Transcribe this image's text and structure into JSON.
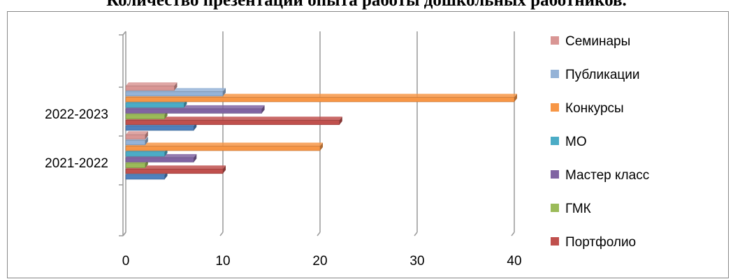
{
  "chart_data": {
    "type": "bar",
    "orientation": "horizontal",
    "title": "Количество презентаций опыта работы дошкольных работников.",
    "categories": [
      "2021-2022",
      "2022-2023"
    ],
    "series": [
      {
        "name": "Портфолио",
        "values": [
          10,
          22
        ],
        "color": "#C0504D"
      },
      {
        "name": "ГМК",
        "values": [
          2,
          4
        ],
        "color": "#9BBB59"
      },
      {
        "name": "Мастер класс",
        "values": [
          7,
          14
        ],
        "color": "#8064A2"
      },
      {
        "name": "МО",
        "values": [
          4,
          6
        ],
        "color": "#4BACC6"
      },
      {
        "name": "Конкурсы",
        "values": [
          20,
          40
        ],
        "color": "#F79646"
      },
      {
        "name": "Публикации",
        "values": [
          2,
          10
        ],
        "color": "#95B3D7"
      },
      {
        "name": "Семинары",
        "values": [
          2,
          5
        ],
        "color": "#D99694"
      }
    ],
    "extra_bars": {
      "values": [
        4,
        7
      ],
      "color": "#4F81BD"
    },
    "xlim": [
      0,
      40
    ],
    "xticks": [
      0,
      10,
      20,
      30,
      40
    ],
    "grid": true,
    "legend": "right"
  }
}
